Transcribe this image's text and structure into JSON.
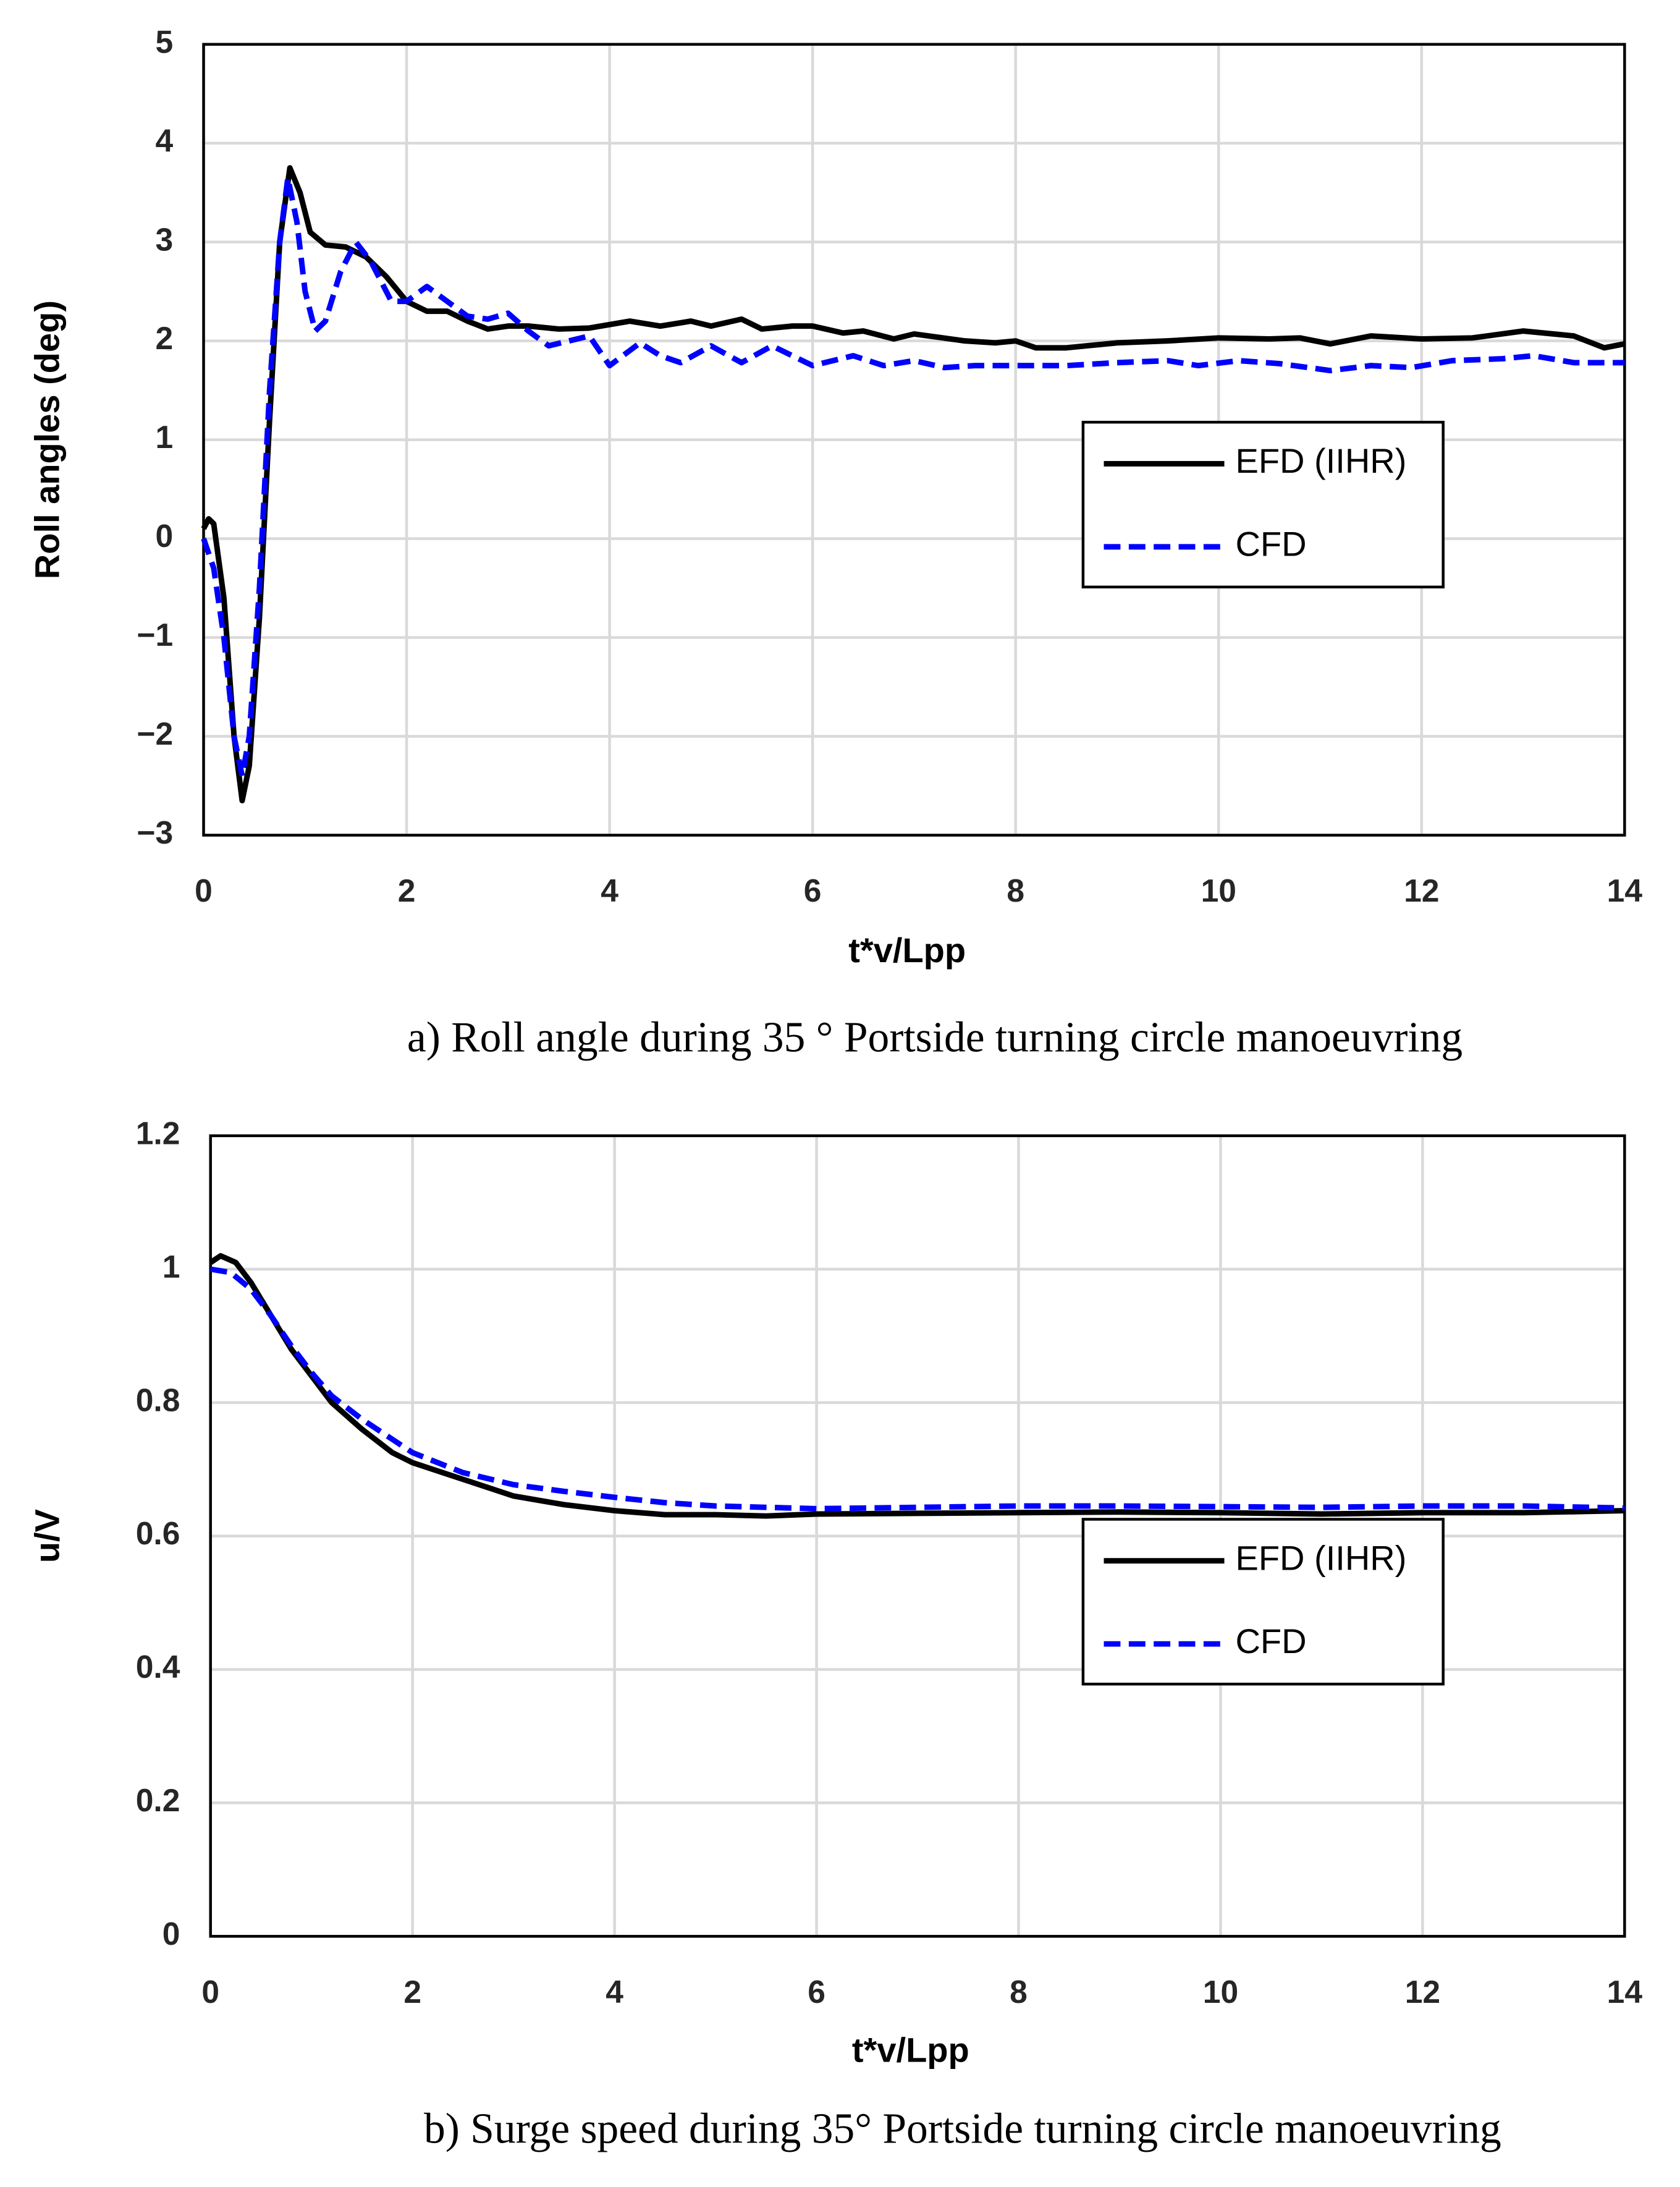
{
  "chart_data": [
    {
      "type": "line",
      "caption": "a) Roll angle during 35 ° Portside turning circle manoeuvring",
      "xlabel": "t*v/Lpp",
      "ylabel": "Roll angles (deg)",
      "xlim": [
        0,
        14
      ],
      "xticks": [
        0,
        2,
        4,
        6,
        8,
        10,
        12,
        14
      ],
      "ylim": [
        -3,
        5
      ],
      "yticks": [
        {
          "value": -3,
          "label": "−3"
        },
        {
          "value": -2,
          "label": "−2"
        },
        {
          "value": -1,
          "label": "−1"
        },
        0,
        1,
        2,
        3,
        4,
        5
      ],
      "grid": true,
      "legend_position": "right",
      "series": [
        {
          "name": "EFD (IIHR)",
          "color": "#000000",
          "line_style": "solid",
          "x": [
            0,
            0.05,
            0.1,
            0.2,
            0.3,
            0.38,
            0.45,
            0.55,
            0.65,
            0.75,
            0.85,
            0.95,
            1.05,
            1.2,
            1.4,
            1.6,
            1.8,
            2.0,
            2.2,
            2.4,
            2.6,
            2.8,
            3.0,
            3.2,
            3.5,
            3.8,
            4.2,
            4.5,
            4.8,
            5.0,
            5.3,
            5.5,
            5.8,
            6.0,
            6.3,
            6.5,
            6.8,
            7.0,
            7.5,
            7.8,
            8.0,
            8.2,
            8.5,
            9.0,
            9.5,
            10.0,
            10.5,
            10.8,
            11.1,
            11.5,
            12.0,
            12.5,
            13.0,
            13.5,
            13.8,
            14.0
          ],
          "values": [
            0.1,
            0.2,
            0.15,
            -0.6,
            -2.0,
            -2.65,
            -2.3,
            -0.8,
            1.2,
            3.0,
            3.75,
            3.5,
            3.1,
            2.97,
            2.95,
            2.85,
            2.65,
            2.4,
            2.3,
            2.3,
            2.2,
            2.12,
            2.15,
            2.15,
            2.12,
            2.13,
            2.2,
            2.15,
            2.2,
            2.15,
            2.22,
            2.12,
            2.15,
            2.15,
            2.08,
            2.1,
            2.02,
            2.07,
            2.0,
            1.98,
            2.0,
            1.93,
            1.93,
            1.98,
            2.0,
            2.03,
            2.02,
            2.03,
            1.97,
            2.05,
            2.02,
            2.03,
            2.1,
            2.05,
            1.93,
            1.97
          ]
        },
        {
          "name": "CFD",
          "color": "#0000ff",
          "line_style": "dashed",
          "x": [
            0,
            0.1,
            0.2,
            0.3,
            0.38,
            0.45,
            0.55,
            0.65,
            0.75,
            0.83,
            0.92,
            1.0,
            1.1,
            1.2,
            1.35,
            1.5,
            1.65,
            1.85,
            2.0,
            2.2,
            2.4,
            2.6,
            2.8,
            3.0,
            3.2,
            3.4,
            3.6,
            3.8,
            4.0,
            4.3,
            4.5,
            4.7,
            5.0,
            5.3,
            5.6,
            6.0,
            6.4,
            6.7,
            7.0,
            7.3,
            7.6,
            8.0,
            8.5,
            9.0,
            9.5,
            9.8,
            10.2,
            10.6,
            11.1,
            11.5,
            11.9,
            12.3,
            12.8,
            13.1,
            13.5,
            14.0
          ],
          "values": [
            0.0,
            -0.3,
            -1.0,
            -2.0,
            -2.4,
            -2.0,
            -0.5,
            1.5,
            3.0,
            3.65,
            3.2,
            2.5,
            2.1,
            2.2,
            2.7,
            3.0,
            2.8,
            2.4,
            2.4,
            2.55,
            2.4,
            2.25,
            2.22,
            2.28,
            2.1,
            1.95,
            2.0,
            2.05,
            1.75,
            1.98,
            1.85,
            1.78,
            1.95,
            1.78,
            1.95,
            1.75,
            1.85,
            1.75,
            1.8,
            1.73,
            1.75,
            1.75,
            1.75,
            1.78,
            1.8,
            1.75,
            1.8,
            1.77,
            1.7,
            1.75,
            1.73,
            1.8,
            1.82,
            1.85,
            1.78,
            1.78
          ]
        }
      ]
    },
    {
      "type": "line",
      "caption": "b) Surge speed during 35° Portside turning circle manoeuvring",
      "xlabel": "t*v/Lpp",
      "ylabel": "u/V",
      "xlim": [
        0,
        14
      ],
      "xticks": [
        0,
        2,
        4,
        6,
        8,
        10,
        12,
        14
      ],
      "ylim": [
        0,
        1.2
      ],
      "yticks": [
        0,
        0.2,
        0.4,
        0.6,
        0.8,
        1,
        1.2
      ],
      "grid": true,
      "legend_position": "right",
      "series": [
        {
          "name": "EFD (IIHR)",
          "color": "#000000",
          "line_style": "solid",
          "x": [
            0,
            0.1,
            0.25,
            0.4,
            0.6,
            0.8,
            1.0,
            1.2,
            1.5,
            1.8,
            2.0,
            2.5,
            3.0,
            3.5,
            4.0,
            4.5,
            5.0,
            5.5,
            6,
            7,
            8,
            9,
            10,
            11,
            12,
            13,
            14
          ],
          "values": [
            1.01,
            1.02,
            1.01,
            0.98,
            0.93,
            0.88,
            0.84,
            0.8,
            0.76,
            0.725,
            0.71,
            0.685,
            0.66,
            0.647,
            0.638,
            0.632,
            0.632,
            0.63,
            0.633,
            0.634,
            0.635,
            0.636,
            0.635,
            0.633,
            0.635,
            0.635,
            0.638
          ]
        },
        {
          "name": "CFD",
          "color": "#0000ff",
          "line_style": "dashed",
          "x": [
            0,
            0.2,
            0.4,
            0.6,
            0.8,
            1.0,
            1.2,
            1.5,
            1.8,
            2.0,
            2.5,
            3.0,
            3.5,
            4.0,
            4.5,
            5.0,
            6,
            7,
            8,
            9,
            10,
            11,
            12,
            13,
            14
          ],
          "values": [
            1.0,
            0.995,
            0.97,
            0.93,
            0.885,
            0.845,
            0.81,
            0.775,
            0.745,
            0.725,
            0.695,
            0.677,
            0.667,
            0.658,
            0.65,
            0.645,
            0.641,
            0.643,
            0.645,
            0.645,
            0.644,
            0.643,
            0.645,
            0.645,
            0.642
          ]
        }
      ]
    }
  ]
}
